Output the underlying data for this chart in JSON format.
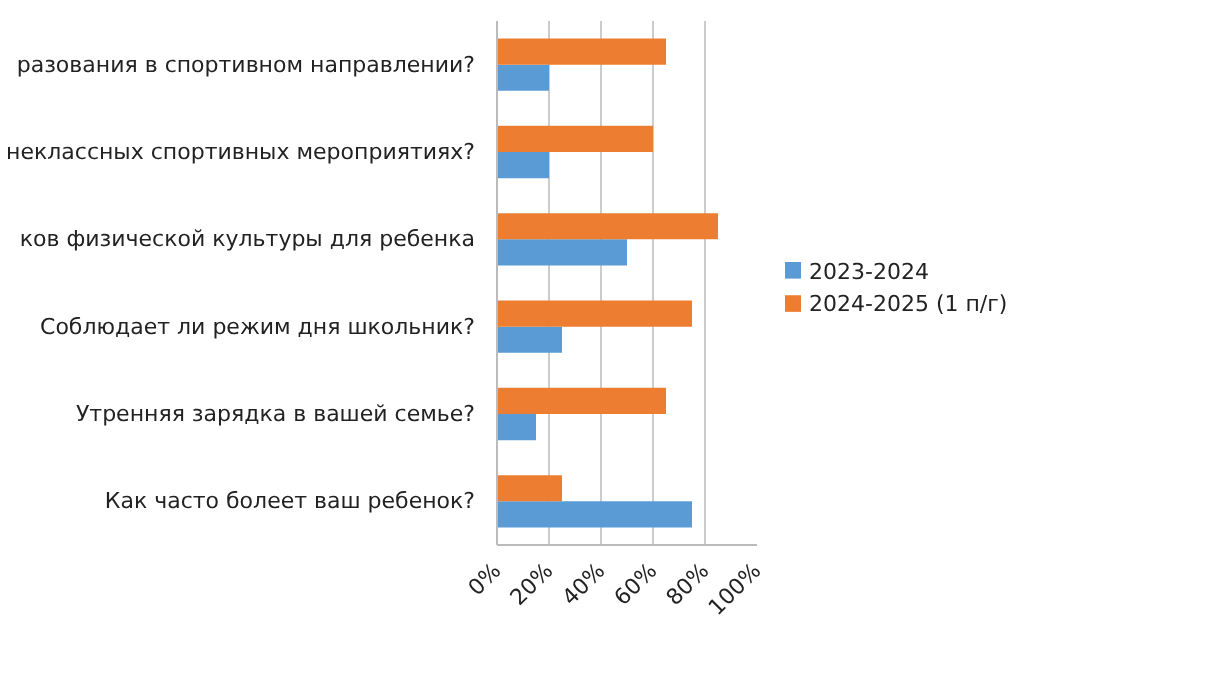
{
  "chart_data": {
    "type": "bar",
    "orientation": "horizontal",
    "categories": [
      "разования в спортивном направлении?",
      "неклассных спортивных мероприятиях?",
      "ков физической культуры для ребенка",
      "Соблюдает ли режим дня школьник?",
      "Утренняя зарядка в вашей семье?",
      "Как часто болеет ваш ребенок?"
    ],
    "series": [
      {
        "name": "2023-2024",
        "color": "#5b9bd5",
        "values": [
          20,
          20,
          50,
          25,
          15,
          75
        ]
      },
      {
        "name": "2024-2025 (1 п/г)",
        "color": "#ed7d31",
        "values": [
          65,
          60,
          85,
          75,
          65,
          25
        ]
      }
    ],
    "xlim": [
      0,
      100
    ],
    "xticks": [
      {
        "value": 0,
        "label": "0%"
      },
      {
        "value": 20,
        "label": "20%"
      },
      {
        "value": 40,
        "label": "40%"
      },
      {
        "value": 60,
        "label": "60%"
      },
      {
        "value": 80,
        "label": "80%"
      },
      {
        "value": 100,
        "label": "100%"
      }
    ],
    "grid": "x",
    "legend": "right"
  }
}
